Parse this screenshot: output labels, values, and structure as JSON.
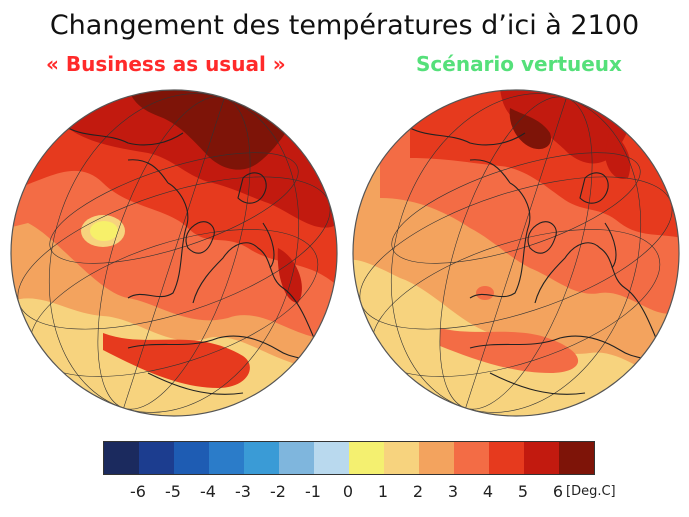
{
  "title": "Changement des températures d’ici à 2100",
  "scenarios": {
    "left": {
      "label": "« Business as usual »",
      "color": "#ff2a2a"
    },
    "right": {
      "label": "Scénario vertueux",
      "color": "#55e07a"
    }
  },
  "legend": {
    "ticks": [
      "-6",
      "-5",
      "-4",
      "-3",
      "-2",
      "-1",
      "0",
      "1",
      "2",
      "3",
      "4",
      "5",
      "6"
    ],
    "colors": [
      "#1b2a5e",
      "#1c3d8f",
      "#1e5cb3",
      "#2b7cc9",
      "#3a9bd6",
      "#7fb6dd",
      "#b9d9ee",
      "#f4f070",
      "#f7d37e",
      "#f3a35e",
      "#f36c45",
      "#e63a1e",
      "#c21a0f",
      "#7e1408"
    ],
    "unit": "[Deg.C]"
  }
}
